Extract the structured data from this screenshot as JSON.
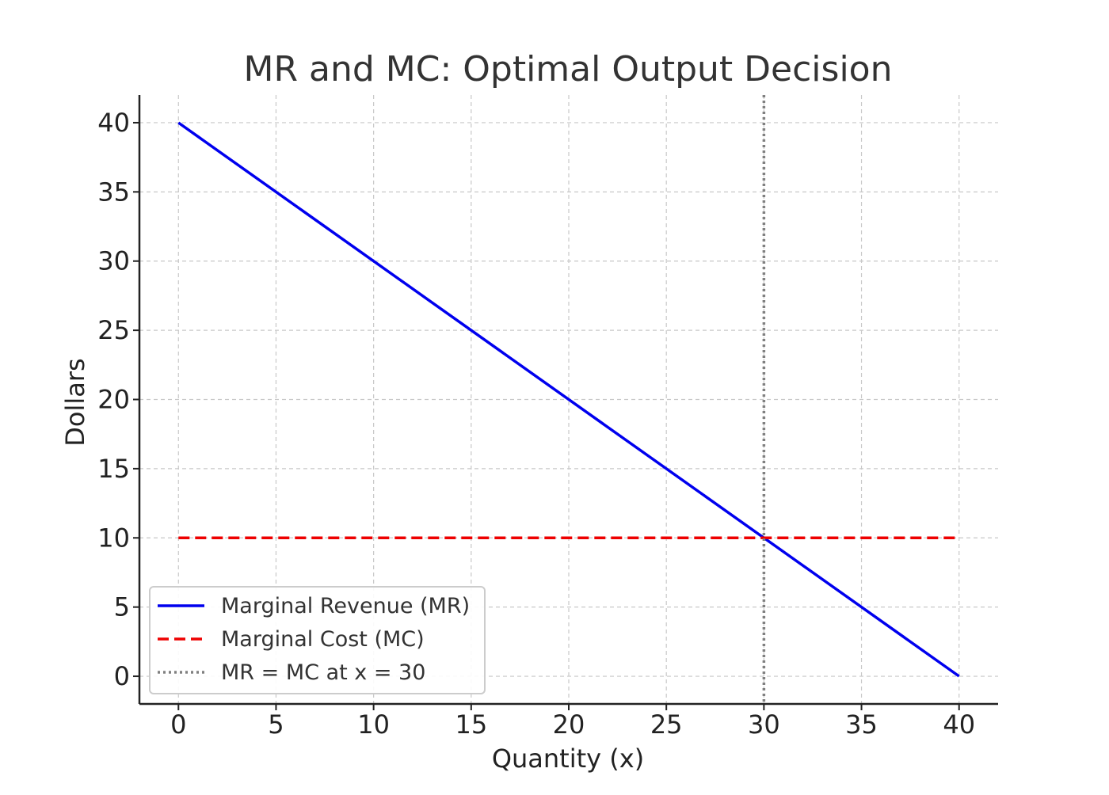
{
  "chart_data": {
    "type": "line",
    "title": "MR and MC: Optimal Output Decision",
    "xlabel": "Quantity (x)",
    "ylabel": "Dollars",
    "xlim": [
      -2,
      42
    ],
    "ylim": [
      -2,
      42
    ],
    "xticks": [
      0,
      5,
      10,
      15,
      20,
      25,
      30,
      35,
      40
    ],
    "yticks": [
      0,
      5,
      10,
      15,
      20,
      25,
      30,
      35,
      40
    ],
    "grid": true,
    "legend_position": "lower-left",
    "series": [
      {
        "name": "Marginal Revenue (MR)",
        "x": [
          0,
          40
        ],
        "y": [
          40,
          0
        ],
        "color": "#0000ee",
        "style": "solid"
      },
      {
        "name": "Marginal Cost (MC)",
        "x": [
          0,
          40
        ],
        "y": [
          10,
          10
        ],
        "color": "#ee0000",
        "style": "dashed"
      }
    ],
    "vlines": [
      {
        "name": "MR = MC at x = 30",
        "x": 30,
        "color": "#808080",
        "style": "dotted"
      }
    ]
  }
}
